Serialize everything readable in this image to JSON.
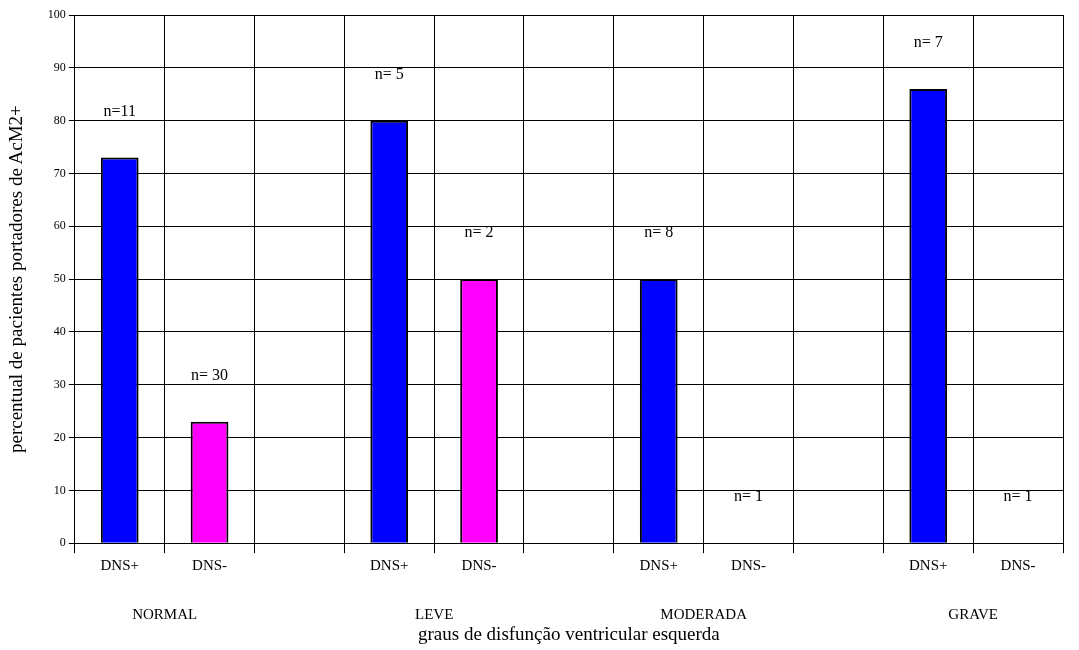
{
  "chart_data": {
    "type": "bar",
    "xlabel": "graus de disfunção ventricular esquerda",
    "ylabel": "percentual de pacientes portadores de AcM2+",
    "categories": [
      "DNS+",
      "DNS-",
      null,
      "DNS+",
      "DNS-",
      null,
      "DNS+",
      "DNS-",
      null,
      "DNS+",
      "DNS-"
    ],
    "values": [
      73,
      23,
      null,
      80,
      50,
      null,
      50,
      0,
      null,
      86,
      0
    ],
    "colors": [
      "#0000ff",
      "#ff00ff",
      null,
      "#0000ff",
      "#ff00ff",
      null,
      "#0000ff",
      "#ff00ff",
      null,
      "#0000ff",
      "#ff00ff"
    ],
    "annotations": [
      "NORMAL",
      "LEVE",
      "MODERADA",
      "GRAVE",
      "n=11",
      "n= 30",
      "n= 5",
      "n= 2",
      "n= 8",
      "n= 1",
      "n= 7",
      "n= 1"
    ],
    "ylim": [
      0,
      100
    ],
    "yticks": [
      0,
      10,
      20,
      30,
      40,
      50,
      60,
      70,
      80,
      90,
      100
    ],
    "grid": true,
    "legend": false
  }
}
